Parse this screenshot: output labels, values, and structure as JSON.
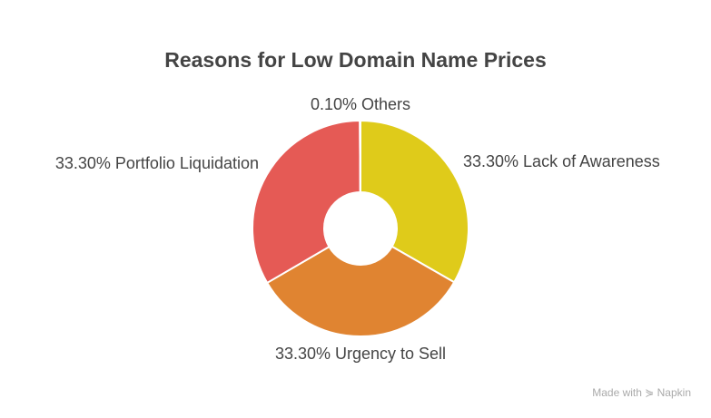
{
  "chart_data": {
    "type": "pie",
    "donut": true,
    "title": "Reasons for Low Domain Name Prices",
    "slices": [
      {
        "label": "33.30% Lack of Awareness",
        "value": 33.3,
        "color": "#DFCB1A"
      },
      {
        "label": "33.30% Urgency to Sell",
        "value": 33.3,
        "color": "#E08431"
      },
      {
        "label": "33.30% Portfolio Liquidation",
        "value": 33.3,
        "color": "#E55A55"
      },
      {
        "label": "0.10% Others",
        "value": 0.1,
        "color": "#F2F2F2"
      }
    ]
  },
  "watermark": "Made with ⋟ Napkin"
}
